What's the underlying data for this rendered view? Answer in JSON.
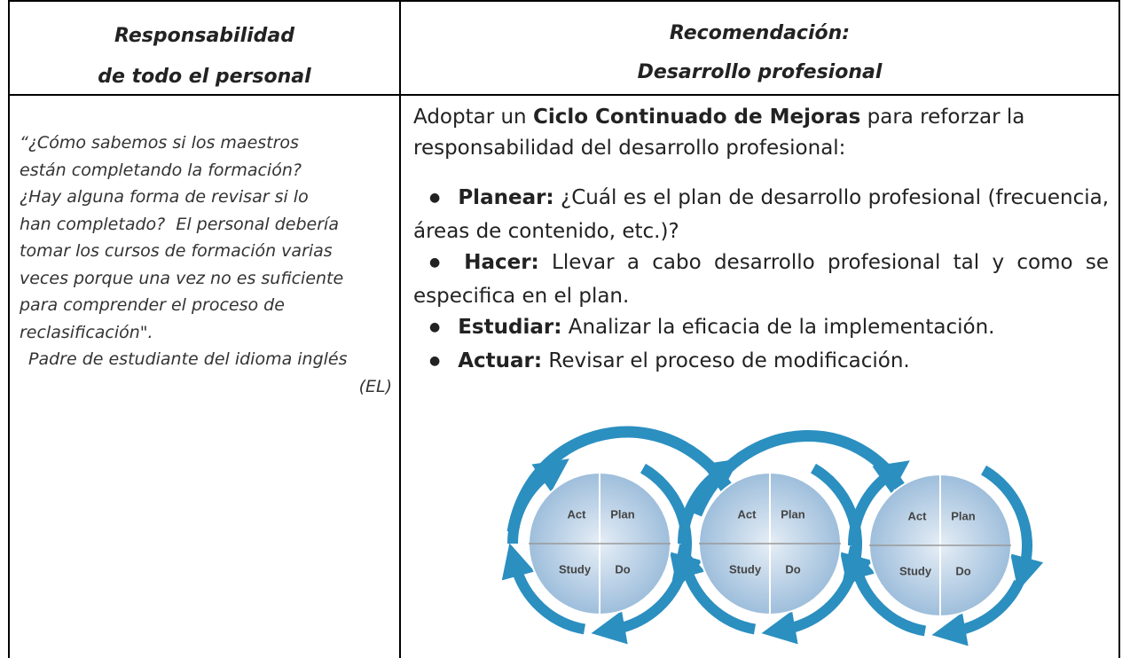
{
  "table": {
    "headers": [
      [
        "Responsabilidad",
        "de todo el personal"
      ],
      [
        "Recomendación:",
        "Desarrollo profesional"
      ]
    ],
    "quote": {
      "lines": [
        "“¿Cómo sabemos si los maestros",
        "están completando la formación?",
        "¿Hay alguna forma de revisar si lo",
        "han completado?  El personal debería",
        "tomar los cursos de formación varias",
        "veces porque una vez no es suficiente",
        "para comprender el proceso de",
        "reclasificación\"."
      ],
      "attribution": [
        "Padre de estudiante del idioma inglés",
        "(EL)"
      ]
    },
    "intro": {
      "before": "Adoptar un ",
      "bold": "Ciclo Continuado de Mejoras",
      "after": " para reforzar la responsabilidad del desarrollo profesional:"
    },
    "bullets": [
      {
        "label": "Planear:",
        "text": " ¿Cuál es el plan de desarrollo profesional (frecuencia, áreas de contenido, etc.)?"
      },
      {
        "label": "Hacer:",
        "text": " Llevar a cabo desarrollo profesional tal y como se especifica en el plan."
      },
      {
        "label": "Estudiar:",
        "text": " Analizar la eficacia de la implementación."
      },
      {
        "label": "Actuar:",
        "text": " Revisar el proceso de modificación."
      }
    ],
    "diagram": {
      "cycles": [
        {
          "labels": [
            "Act",
            "Plan",
            "Study",
            "Do"
          ]
        },
        {
          "labels": [
            "Act",
            "Plan",
            "Study",
            "Do"
          ]
        },
        {
          "labels": [
            "Act",
            "Plan",
            "Study",
            "Do"
          ]
        }
      ]
    }
  }
}
